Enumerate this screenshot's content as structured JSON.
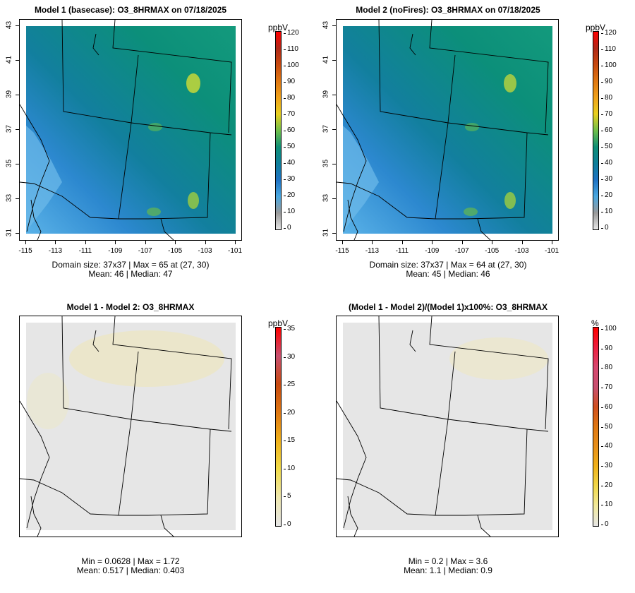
{
  "panels": [
    {
      "title": "Model 1 (basecase): O3_8HRMAX on 07/18/2025",
      "stats_line1": "Domain size: 37x37 | Max = 65 at (27, 30)",
      "stats_line2": "Mean: 46 |  Median: 47",
      "unit": "ppbV",
      "ticks": [
        "0",
        "10",
        "20",
        "30",
        "40",
        "50",
        "60",
        "70",
        "80",
        "90",
        "100",
        "110",
        "120"
      ]
    },
    {
      "title": "Model 2 (noFires): O3_8HRMAX on 07/18/2025",
      "stats_line1": "Domain size: 37x37 | Max = 64 at (27, 30)",
      "stats_line2": "Mean: 45 |  Median: 46",
      "unit": "ppbV",
      "ticks": [
        "0",
        "10",
        "20",
        "30",
        "40",
        "50",
        "60",
        "70",
        "80",
        "90",
        "100",
        "110",
        "120"
      ]
    },
    {
      "title": "Model 1 - Model 2: O3_8HRMAX",
      "stats_line1": "Min = 0.0628 | Max = 1.72",
      "stats_line2": "Mean: 0.517 |  Median: 0.403",
      "unit": "ppbV",
      "ticks": [
        "0",
        "5",
        "10",
        "15",
        "20",
        "25",
        "30",
        "35"
      ]
    },
    {
      "title": "(Model 1 - Model 2)/(Model 1)x100%: O3_8HRMAX",
      "stats_line1": "Min = 0.2 | Max = 3.6",
      "stats_line2": "Mean: 1.1 |  Median: 0.9",
      "unit": "%",
      "ticks": [
        "0",
        "10",
        "20",
        "30",
        "40",
        "50",
        "60",
        "70",
        "80",
        "90",
        "100"
      ]
    }
  ],
  "axes": {
    "x_ticks": [
      "-115",
      "-113",
      "-111",
      "-109",
      "-107",
      "-105",
      "-103",
      "-101"
    ],
    "y_ticks": [
      "31",
      "33",
      "35",
      "37",
      "39",
      "41",
      "43"
    ]
  },
  "colors": {
    "ozone_scale": [
      "#e6e6e6",
      "#9a9a9a",
      "#4aa8e0",
      "#1f73c4",
      "#0e7f9b",
      "#0e8f76",
      "#6fbf4a",
      "#e8d020",
      "#f0a21a",
      "#e07812",
      "#c84a10",
      "#b02818",
      "#ff0000"
    ],
    "diff_scale": [
      "#e6e6e6",
      "#efe8b0",
      "#f1dc4a",
      "#f0b21a",
      "#e07812",
      "#c84a10",
      "#c85070",
      "#ff0000"
    ],
    "pct_scale": [
      "#e6e6e6",
      "#f2ea9c",
      "#f1d84a",
      "#f0b21a",
      "#e8901a",
      "#e07812",
      "#d05020",
      "#c85070",
      "#d84870",
      "#ee2040",
      "#ff0000"
    ]
  }
}
